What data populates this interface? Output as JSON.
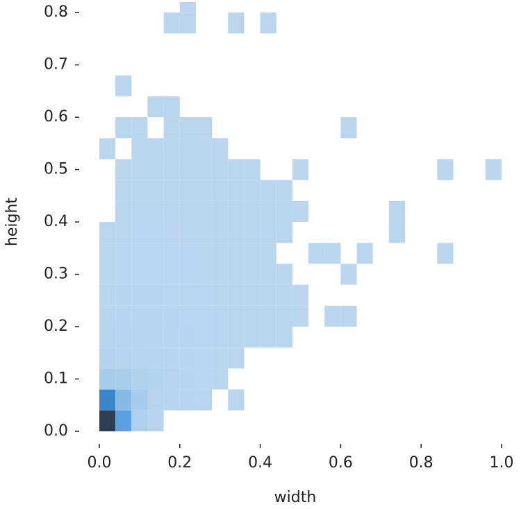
{
  "chart_data": {
    "type": "hist2d",
    "xlabel": "width",
    "ylabel": "height",
    "xlim": [
      0,
      1.0
    ],
    "ylim": [
      0,
      0.82
    ],
    "xticks": [
      {
        "value": 0,
        "label": "0.0"
      },
      {
        "value": 0.2,
        "label": "0.2"
      },
      {
        "value": 0.4,
        "label": "0.4"
      },
      {
        "value": 0.6,
        "label": "0.6"
      },
      {
        "value": 0.8,
        "label": "0.8"
      },
      {
        "value": 1.0,
        "label": "1.0"
      }
    ],
    "yticks": [
      {
        "value": 0,
        "label": "0.0"
      },
      {
        "value": 0.1,
        "label": "0.1"
      },
      {
        "value": 0.2,
        "label": "0.2"
      },
      {
        "value": 0.3,
        "label": "0.3"
      },
      {
        "value": 0.4,
        "label": "0.4"
      },
      {
        "value": 0.5,
        "label": "0.5"
      },
      {
        "value": 0.6,
        "label": "0.6"
      },
      {
        "value": 0.7,
        "label": "0.7"
      },
      {
        "value": 0.8,
        "label": "0.8"
      }
    ],
    "xbins": [
      0,
      0.04,
      0.08,
      0.12,
      0.16,
      0.2,
      0.24,
      0.28,
      0.32,
      0.36,
      0.4,
      0.44,
      0.48,
      0.52,
      0.56,
      0.6,
      0.64,
      0.68,
      0.72,
      0.76,
      0.8,
      0.84,
      0.88,
      0.92,
      0.96,
      1.0
    ],
    "ybins": [
      0,
      0.04,
      0.08,
      0.12,
      0.16,
      0.2,
      0.24,
      0.28,
      0.32,
      0.36,
      0.4,
      0.44,
      0.48,
      0.52,
      0.56,
      0.6,
      0.64,
      0.68,
      0.72,
      0.76,
      0.8,
      0.82
    ],
    "cmap": [
      "#bad6ef",
      "#3b8fd9",
      "#2c3e50"
    ],
    "counts": [
      [
        400,
        150,
        20,
        5,
        0,
        0,
        0,
        0,
        0,
        0,
        0,
        0,
        0,
        0,
        0,
        0,
        0,
        0,
        0,
        0,
        0,
        0,
        0,
        0,
        0
      ],
      [
        220,
        80,
        30,
        8,
        5,
        4,
        3,
        0,
        1,
        0,
        0,
        0,
        0,
        0,
        0,
        0,
        0,
        0,
        0,
        0,
        0,
        0,
        0,
        0,
        0
      ],
      [
        30,
        25,
        15,
        10,
        6,
        4,
        3,
        2,
        0,
        0,
        0,
        0,
        0,
        0,
        0,
        0,
        0,
        0,
        0,
        0,
        0,
        0,
        0,
        0,
        0
      ],
      [
        10,
        8,
        8,
        6,
        5,
        4,
        3,
        2,
        1,
        0,
        0,
        0,
        0,
        0,
        0,
        0,
        0,
        0,
        0,
        0,
        0,
        0,
        0,
        0,
        0
      ],
      [
        6,
        6,
        5,
        5,
        4,
        4,
        3,
        3,
        2,
        2,
        1,
        1,
        0,
        0,
        0,
        0,
        0,
        0,
        0,
        0,
        0,
        0,
        0,
        0,
        0
      ],
      [
        4,
        5,
        5,
        4,
        4,
        3,
        3,
        3,
        2,
        2,
        1,
        1,
        1,
        0,
        1,
        1,
        0,
        0,
        0,
        0,
        0,
        0,
        0,
        0,
        0
      ],
      [
        3,
        4,
        4,
        4,
        3,
        3,
        3,
        2,
        2,
        2,
        1,
        1,
        1,
        0,
        0,
        0,
        0,
        0,
        0,
        0,
        0,
        0,
        0,
        0,
        0
      ],
      [
        2,
        3,
        3,
        3,
        3,
        3,
        2,
        2,
        2,
        1,
        1,
        1,
        0,
        0,
        0,
        1,
        0,
        0,
        0,
        0,
        0,
        0,
        0,
        0,
        0
      ],
      [
        2,
        3,
        3,
        3,
        3,
        3,
        2,
        2,
        2,
        1,
        1,
        0,
        0,
        1,
        1,
        0,
        1,
        0,
        0,
        0,
        0,
        1,
        0,
        0,
        0
      ],
      [
        1,
        2,
        3,
        3,
        3,
        2,
        2,
        2,
        2,
        1,
        1,
        1,
        0,
        0,
        0,
        0,
        0,
        0,
        1,
        0,
        0,
        0,
        0,
        0,
        0
      ],
      [
        0,
        2,
        2,
        2,
        2,
        2,
        2,
        2,
        1,
        1,
        1,
        1,
        1,
        0,
        0,
        0,
        0,
        0,
        1,
        0,
        0,
        0,
        0,
        0,
        0
      ],
      [
        0,
        1,
        2,
        2,
        2,
        2,
        2,
        1,
        1,
        1,
        1,
        1,
        0,
        0,
        0,
        0,
        0,
        0,
        0,
        0,
        0,
        0,
        0,
        0,
        0
      ],
      [
        0,
        1,
        1,
        1,
        2,
        2,
        1,
        1,
        1,
        1,
        0,
        0,
        1,
        0,
        0,
        0,
        0,
        0,
        0,
        0,
        0,
        1,
        0,
        0,
        1
      ],
      [
        1,
        0,
        1,
        1,
        1,
        1,
        1,
        1,
        0,
        0,
        0,
        0,
        0,
        0,
        0,
        0,
        0,
        0,
        0,
        0,
        0,
        0,
        0,
        0,
        0
      ],
      [
        0,
        1,
        1,
        0,
        1,
        1,
        1,
        0,
        0,
        0,
        0,
        0,
        0,
        0,
        0,
        1,
        0,
        0,
        0,
        0,
        0,
        0,
        0,
        0,
        0
      ],
      [
        0,
        0,
        0,
        1,
        1,
        0,
        0,
        0,
        0,
        0,
        0,
        0,
        0,
        0,
        0,
        0,
        0,
        0,
        0,
        0,
        0,
        0,
        0,
        0,
        0
      ],
      [
        0,
        1,
        0,
        0,
        0,
        0,
        0,
        0,
        0,
        0,
        0,
        0,
        0,
        0,
        0,
        0,
        0,
        0,
        0,
        0,
        0,
        0,
        0,
        0,
        0
      ],
      [
        0,
        0,
        0,
        0,
        0,
        0,
        0,
        0,
        0,
        0,
        0,
        0,
        0,
        0,
        0,
        0,
        0,
        0,
        0,
        0,
        0,
        0,
        0,
        0,
        0
      ],
      [
        0,
        0,
        0,
        0,
        0,
        0,
        0,
        0,
        0,
        0,
        0,
        0,
        0,
        0,
        0,
        0,
        0,
        0,
        0,
        0,
        0,
        0,
        0,
        0,
        0
      ],
      [
        0,
        0,
        0,
        0,
        1,
        1,
        0,
        0,
        1,
        0,
        1,
        0,
        0,
        0,
        0,
        0,
        0,
        0,
        0,
        0,
        0,
        0,
        0,
        0,
        0
      ],
      [
        0,
        0,
        0,
        0,
        0,
        1,
        0,
        0,
        0,
        0,
        0,
        0,
        0,
        0,
        0,
        0,
        0,
        0,
        0,
        0,
        0,
        0,
        0,
        0,
        0
      ]
    ]
  }
}
